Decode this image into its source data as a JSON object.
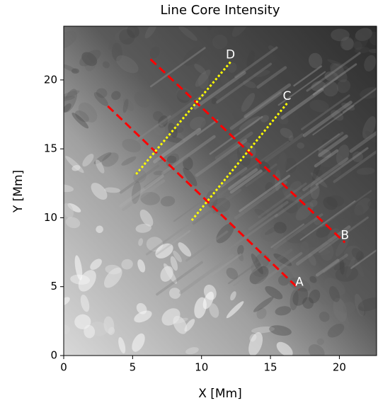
{
  "chart_data": {
    "type": "image",
    "title": "Line Core Intensity",
    "xlabel": "X [Mm]",
    "ylabel": "Y [Mm]",
    "xlim": [
      0,
      22.7
    ],
    "ylim": [
      0,
      23.9
    ],
    "xticks": [
      0,
      5,
      10,
      15,
      20
    ],
    "yticks": [
      0,
      5,
      10,
      15,
      20
    ],
    "colormap": "gray",
    "lines": [
      {
        "label": "A",
        "x": [
          3.2,
          17.1
        ],
        "y": [
          18.1,
          4.8
        ],
        "color": "#ff0000",
        "style": "dashed"
      },
      {
        "label": "B",
        "x": [
          6.3,
          20.4
        ],
        "y": [
          21.5,
          8.2
        ],
        "color": "#ff0000",
        "style": "dashed"
      },
      {
        "label": "C",
        "x": [
          16.2,
          9.2
        ],
        "y": [
          18.3,
          9.7
        ],
        "color": "#ffff00",
        "style": "dotted"
      },
      {
        "label": "D",
        "x": [
          12.1,
          5.2
        ],
        "y": [
          21.3,
          13.1
        ],
        "color": "#ffff00",
        "style": "dotted"
      }
    ]
  }
}
